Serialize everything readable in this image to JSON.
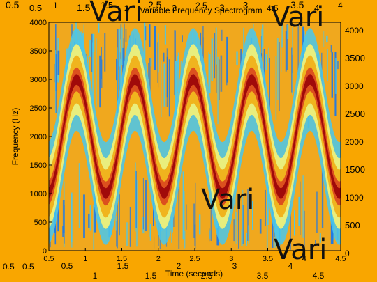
{
  "chart_data": {
    "type": "heatmap",
    "title": "Variable Frequency Spectrogram",
    "xlabel": "Time (seconds)",
    "ylabel": "Frequency (Hz)",
    "xlim": [
      0.5,
      4.5
    ],
    "ylim": [
      0,
      4000
    ],
    "x_ticks": [
      0.5,
      1,
      1.5,
      2,
      2.5,
      3,
      3.5,
      4,
      4.5
    ],
    "y_ticks": [
      0,
      500,
      1000,
      1500,
      2000,
      2500,
      3000,
      3500,
      4000
    ],
    "ridge": {
      "center_hz": 2000,
      "amplitude_hz": 1000,
      "cycles": 5
    },
    "colormap": [
      "#1e78e6",
      "#46c8f0",
      "#f0f078",
      "#f0b41e",
      "#dc501e",
      "#a00a0a"
    ],
    "watermark_text": "Vari",
    "top_tick_labels": [
      "0.5",
      "0.5",
      "1",
      "1.5",
      "1.5",
      "2",
      "2.5",
      "3",
      "2.5",
      "3",
      "3",
      "4.5",
      "3.5",
      "4",
      "4"
    ],
    "bottom_tick_labels": [
      "0.5",
      "1",
      "1.5",
      "1.5",
      "2",
      "2.5",
      "3",
      "3.5",
      "4",
      "4.5"
    ],
    "left_tick_labels": [
      "0.5",
      "0.5"
    ],
    "right_tick_labels": [
      "4000",
      "3500",
      "3000",
      "2500",
      "2000",
      "1500",
      "1000",
      "500",
      "0"
    ]
  }
}
